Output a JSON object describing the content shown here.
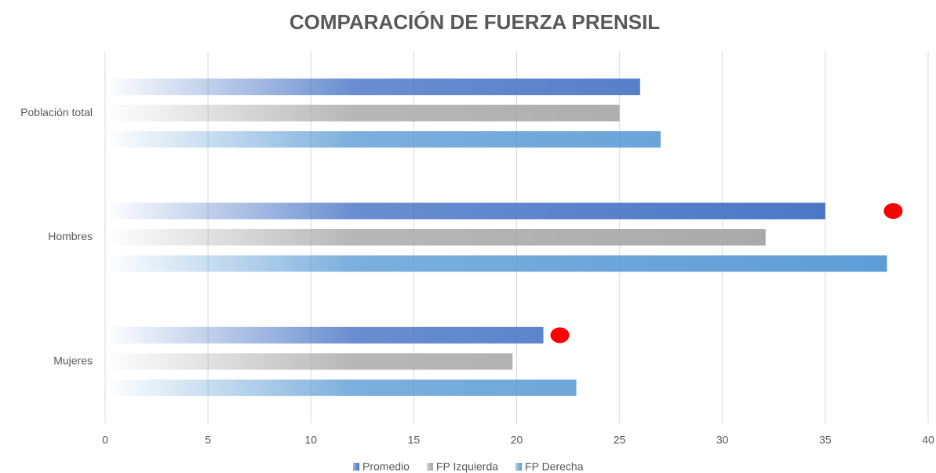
{
  "chart_data": {
    "type": "hbar",
    "title": "COMPARACIÓN DE FUERZA PRENSIL",
    "categories": [
      "Población total",
      "Hombres",
      "Mujeres"
    ],
    "series": [
      {
        "name": "Promedio",
        "color": "#4472c4",
        "values": [
          26,
          35,
          21.3
        ]
      },
      {
        "name": "FP Izquierda",
        "color": "#a5a5a5",
        "values": [
          25,
          32.1,
          19.8
        ]
      },
      {
        "name": "FP Derecha",
        "color": "#5b9bd5",
        "values": [
          27,
          38,
          22.9
        ]
      }
    ],
    "markers": [
      {
        "category": "Hombres",
        "series": "Promedio",
        "x": 38.3,
        "color": "#ff0000"
      },
      {
        "category": "Mujeres",
        "series": "Promedio",
        "x": 22.1,
        "color": "#ff0000"
      }
    ],
    "xlim": [
      0,
      40
    ],
    "xticks": [
      0,
      5,
      10,
      15,
      20,
      25,
      30,
      35,
      40
    ],
    "grid": true,
    "legend": "bottom"
  }
}
